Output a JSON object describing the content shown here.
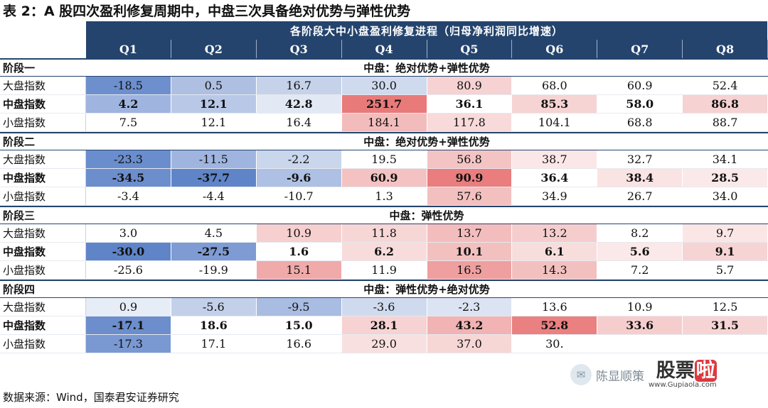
{
  "title": "表 2：A 股四次盈利修复周期中，中盘三次具备绝对优势与弹性优势",
  "header": {
    "span_label": "各阶段大中小盘盈利修复进程（归母净利润同比增速）",
    "quarters": [
      "Q1",
      "Q2",
      "Q3",
      "Q4",
      "Q5",
      "Q6",
      "Q7",
      "Q8"
    ]
  },
  "stages": [
    {
      "label": "阶段一",
      "note": "中盘：绝对优势+弹性优势",
      "rows": [
        {
          "name": "大盘指数",
          "values": [
            "-18.5",
            "0.5",
            "16.7",
            "30.0",
            "80.9",
            "68.0",
            "60.9",
            "52.4"
          ],
          "colors": [
            "#6d8fce",
            "#aebfe2",
            "#c5d2ea",
            "#cfdaee",
            "#f6d2d2",
            "#ffffff",
            "#ffffff",
            "#ffffff"
          ]
        },
        {
          "name": "中盘指数",
          "values": [
            "4.2",
            "12.1",
            "42.8",
            "251.7",
            "36.1",
            "85.3",
            "58.0",
            "86.8"
          ],
          "colors": [
            "#9fb4df",
            "#b9c8e7",
            "#e2e9f5",
            "#e97a7a",
            "#ffffff",
            "#f6d4d4",
            "#ffffff",
            "#f6d2d2"
          ]
        },
        {
          "name": "小盘指数",
          "values": [
            "7.5",
            "12.1",
            "16.4",
            "184.1",
            "117.8",
            "104.1",
            "68.8",
            "88.7"
          ],
          "colors": [
            "#ffffff",
            "#ffffff",
            "#ffffff",
            "#f3bcbc",
            "#f8dada",
            "#ffffff",
            "#ffffff",
            "#ffffff"
          ]
        }
      ]
    },
    {
      "label": "阶段二",
      "note": "中盘：绝对优势+弹性优势",
      "rows": [
        {
          "name": "大盘指数",
          "values": [
            "-23.3",
            "-11.5",
            "-2.2",
            "19.5",
            "56.8",
            "38.7",
            "32.7",
            "34.1"
          ],
          "colors": [
            "#6a8dcd",
            "#9fb5df",
            "#c9d6ec",
            "#ffffff",
            "#f4c4c4",
            "#fbe7e7",
            "#ffffff",
            "#ffffff"
          ]
        },
        {
          "name": "中盘指数",
          "values": [
            "-34.5",
            "-37.7",
            "-9.6",
            "60.9",
            "90.9",
            "36.4",
            "38.4",
            "28.5"
          ],
          "colors": [
            "#6c8ecd",
            "#5f84c8",
            "#aec0e3",
            "#f4c2c2",
            "#ea7d7d",
            "#ffffff",
            "#fae3e3",
            "#fbe9e9"
          ]
        },
        {
          "name": "小盘指数",
          "values": [
            "-3.4",
            "-4.4",
            "-10.7",
            "1.3",
            "57.6",
            "34.9",
            "26.7",
            "34.0"
          ],
          "colors": [
            "#ffffff",
            "#ffffff",
            "#ffffff",
            "#ffffff",
            "#f3c0c0",
            "#ffffff",
            "#ffffff",
            "#ffffff"
          ]
        }
      ]
    },
    {
      "label": "阶段三",
      "note": "中盘：弹性优势",
      "rows": [
        {
          "name": "大盘指数",
          "values": [
            "3.0",
            "4.5",
            "10.9",
            "11.8",
            "13.7",
            "13.2",
            "8.2",
            "9.7"
          ],
          "colors": [
            "#ffffff",
            "#ffffff",
            "#f6cfcf",
            "#f7d6d6",
            "#f3bdbd",
            "#f6cdcd",
            "#ffffff",
            "#fbe6e6"
          ]
        },
        {
          "name": "中盘指数",
          "values": [
            "-30.0",
            "-27.5",
            "1.6",
            "6.2",
            "10.1",
            "6.1",
            "5.6",
            "9.1"
          ],
          "colors": [
            "#5f84c8",
            "#7e9bd4",
            "#ffffff",
            "#f8dcdc",
            "#f3c0c0",
            "#f8dddd",
            "#fbe8e8",
            "#f7d4d4"
          ]
        },
        {
          "name": "小盘指数",
          "values": [
            "-25.6",
            "-19.9",
            "15.1",
            "11.9",
            "16.5",
            "14.3",
            "7.2",
            "5.7"
          ],
          "colors": [
            "#ffffff",
            "#ffffff",
            "#f0aaaa",
            "#ffffff",
            "#ef9f9f",
            "#f3c0c0",
            "#ffffff",
            "#ffffff"
          ]
        }
      ]
    },
    {
      "label": "阶段四",
      "note": "中盘：弹性优势+绝对优势",
      "rows": [
        {
          "name": "大盘指数",
          "values": [
            "0.9",
            "-5.6",
            "-9.5",
            "-3.6",
            "-2.3",
            "13.6",
            "10.9",
            "12.5"
          ],
          "colors": [
            "#e7edf7",
            "#c2d0ea",
            "#a9bce1",
            "#cfdaee",
            "#dce4f3",
            "#ffffff",
            "#ffffff",
            "#ffffff"
          ]
        },
        {
          "name": "中盘指数",
          "values": [
            "-17.1",
            "18.6",
            "15.0",
            "28.1",
            "43.2",
            "52.8",
            "33.6",
            "31.5"
          ],
          "colors": [
            "#6c8ecd",
            "#ffffff",
            "#ffffff",
            "#f6d2d2",
            "#f1b3b3",
            "#ea8080",
            "#f6cdcd",
            "#f7d4d4"
          ]
        },
        {
          "name": "小盘指数",
          "values": [
            "-17.3",
            "17.1",
            "16.6",
            "29.0",
            "37.0",
            "30.",
            "",
            ""
          ],
          "colors": [
            "#7a98d2",
            "#ffffff",
            "#ffffff",
            "#f9e0e0",
            "#f7d6d6",
            "#ffffff",
            "#ffffff",
            "#ffffff"
          ]
        }
      ]
    }
  ],
  "source": "数据来源：Wind，国泰君安证券研究",
  "watermark": {
    "name": "陈显顺策",
    "logo_a": "股票",
    "logo_b": "啦",
    "url": "www.Gupiaola.com"
  }
}
